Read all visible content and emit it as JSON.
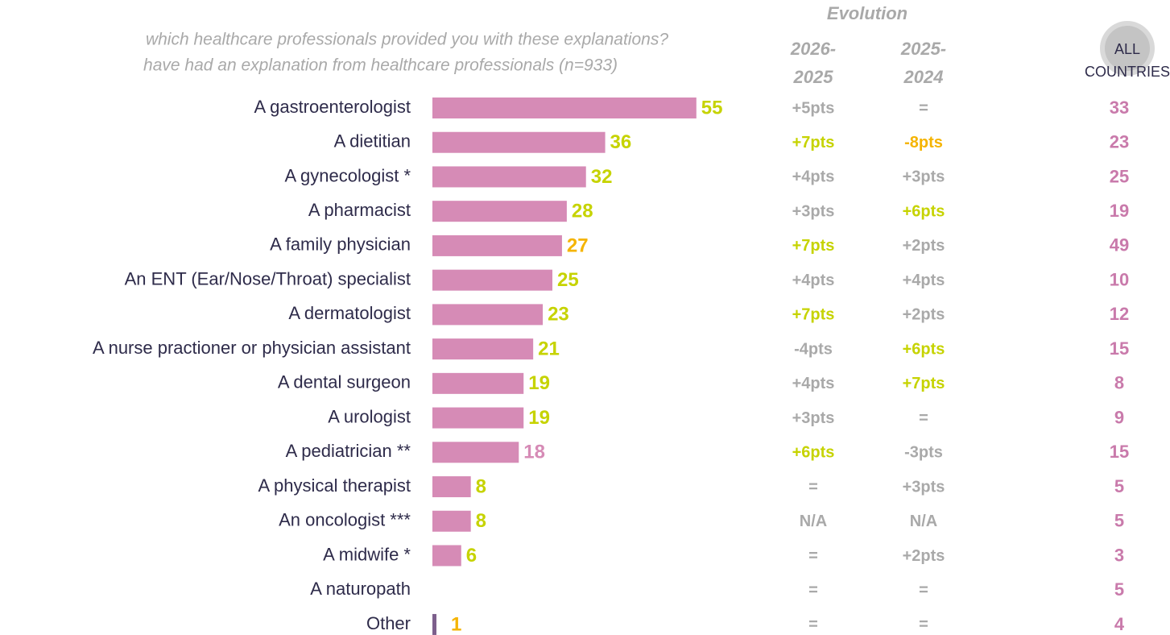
{
  "chart_data": {
    "type": "bar",
    "orientation": "horizontal",
    "title": [
      "which healthcare professionals provided you with these explanations?",
      "have had an explanation from healthcare professionals (n=933)"
    ],
    "categories": [
      "A gastroenterologist",
      "A dietitian",
      "A gynecologist *",
      "A pharmacist",
      "A family physician",
      "An ENT (Ear/Nose/Throat) specialist",
      "A dermatologist",
      "A nurse practioner or physician assistant",
      "A dental surgeon",
      "A urologist",
      "A pediatrician **",
      "A physical therapist",
      "An oncologist ***",
      "A midwife *",
      "A naturopath",
      "Other"
    ],
    "series": [
      {
        "values": [
          55,
          36,
          32,
          28,
          27,
          25,
          23,
          21,
          19,
          19,
          18,
          8,
          8,
          6,
          null,
          1
        ],
        "colors": [
          "#d68bb6",
          "#d68bb6",
          "#d68bb6",
          "#d68bb6",
          "#d68bb6",
          "#d68bb6",
          "#d68bb6",
          "#d68bb6",
          "#d68bb6",
          "#d68bb6",
          "#d68bb6",
          "#d68bb6",
          "#d68bb6",
          "#d68bb6",
          "#d68bb6",
          "#7d5f8c"
        ],
        "label_colors": [
          "#c6d300",
          "#c6d300",
          "#c6d300",
          "#c6d300",
          "#f5b400",
          "#c6d300",
          "#c6d300",
          "#c6d300",
          "#c6d300",
          "#c6d300",
          "#d68bb6",
          "#c6d300",
          "#c6d300",
          "#c6d300",
          "#c6d300",
          "#f5b400"
        ]
      }
    ],
    "evolution": {
      "title": "Evolution",
      "columns": [
        {
          "header": [
            "2026-",
            "2025"
          ],
          "values": [
            "+5pts",
            "+7pts",
            "+4pts",
            "+3pts",
            "+7pts",
            "+4pts",
            "+7pts",
            "-4pts",
            "+4pts",
            "+3pts",
            "+6pts",
            "=",
            "N/A",
            "=",
            "=",
            "="
          ],
          "colors": [
            "#a9a9a9",
            "#c6d300",
            "#a9a9a9",
            "#a9a9a9",
            "#c6d300",
            "#a9a9a9",
            "#c6d300",
            "#a9a9a9",
            "#a9a9a9",
            "#a9a9a9",
            "#c6d300",
            "#a9a9a9",
            "#a9a9a9",
            "#a9a9a9",
            "#a9a9a9",
            "#a9a9a9"
          ]
        },
        {
          "header": [
            "2025-",
            "2024"
          ],
          "values": [
            "=",
            "-8pts",
            "+3pts",
            "+6pts",
            "+2pts",
            "+4pts",
            "+2pts",
            "+6pts",
            "+7pts",
            "=",
            "-3pts",
            "+3pts",
            "N/A",
            "+2pts",
            "=",
            "="
          ],
          "colors": [
            "#a9a9a9",
            "#f5b400",
            "#a9a9a9",
            "#c6d300",
            "#a9a9a9",
            "#a9a9a9",
            "#a9a9a9",
            "#c6d300",
            "#c6d300",
            "#a9a9a9",
            "#a9a9a9",
            "#a9a9a9",
            "#a9a9a9",
            "#a9a9a9",
            "#a9a9a9",
            "#a9a9a9"
          ]
        }
      ]
    },
    "all_countries": {
      "header": [
        "ALL",
        "COUNTRIES"
      ],
      "color": "#c97aab",
      "values": [
        33,
        23,
        25,
        19,
        49,
        10,
        12,
        15,
        8,
        9,
        15,
        5,
        5,
        3,
        5,
        4
      ]
    }
  }
}
